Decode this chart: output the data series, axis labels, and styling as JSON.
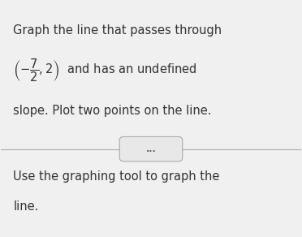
{
  "background_color": "#f0f0f0",
  "top_text_line1": "Graph the line that passes through",
  "top_text_line3": "slope. Plot two points on the line.",
  "divider_color": "#aaaaaa",
  "button_text": "...",
  "button_color": "#e8e8e8",
  "button_border_color": "#aaaaaa",
  "bottom_text_line1": "Use the graphing tool to graph the",
  "bottom_text_line2": "line.",
  "text_color": "#333333",
  "font_size_main": 10.5
}
